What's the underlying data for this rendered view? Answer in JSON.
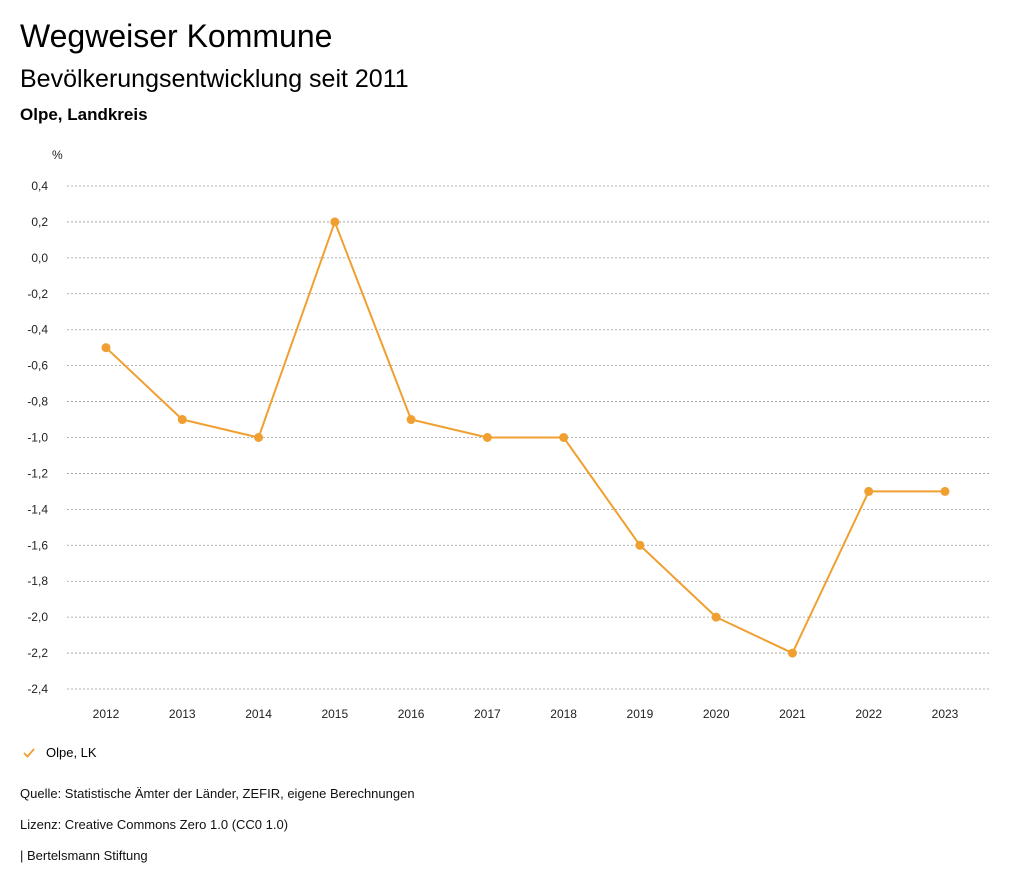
{
  "header": {
    "title": "Wegweiser Kommune",
    "subtitle": "Bevölkerungsentwicklung seit 2011",
    "region": "Olpe, Landkreis"
  },
  "colors": {
    "series": "#f0a030",
    "gridline": "#9a9a9a",
    "axis_text": "#222222"
  },
  "legend": {
    "icon": "checkmark-icon",
    "label": "Olpe, LK"
  },
  "footer": {
    "source": "Quelle: Statistische Ämter der Länder, ZEFIR, eigene Berechnungen",
    "license": "Lizenz: Creative Commons Zero 1.0 (CC0 1.0)",
    "publisher": "| Bertelsmann Stiftung"
  },
  "chart_data": {
    "type": "line",
    "title": "Bevölkerungsentwicklung seit 2011",
    "ylabel": "%",
    "xlabel": "",
    "ylim": [
      -2.4,
      0.4
    ],
    "yticks": [
      "0,4",
      "0,2",
      "0,0",
      "-0,2",
      "-0,4",
      "-0,6",
      "-0,8",
      "-1,0",
      "-1,2",
      "-1,4",
      "-1,6",
      "-1,8",
      "-2,0",
      "-2,2",
      "-2,4"
    ],
    "ytick_values": [
      0.4,
      0.2,
      0.0,
      -0.2,
      -0.4,
      -0.6,
      -0.8,
      -1.0,
      -1.2,
      -1.4,
      -1.6,
      -1.8,
      -2.0,
      -2.2,
      -2.4
    ],
    "categories": [
      "2012",
      "2013",
      "2014",
      "2015",
      "2016",
      "2017",
      "2018",
      "2019",
      "2020",
      "2021",
      "2022",
      "2023"
    ],
    "grid": true,
    "legend_position": "bottom-left",
    "series": [
      {
        "name": "Olpe, LK",
        "values": [
          -0.5,
          -0.9,
          -1.0,
          0.2,
          -0.9,
          -1.0,
          -1.0,
          -1.6,
          -2.0,
          -2.2,
          -1.3,
          -1.3
        ]
      }
    ]
  }
}
